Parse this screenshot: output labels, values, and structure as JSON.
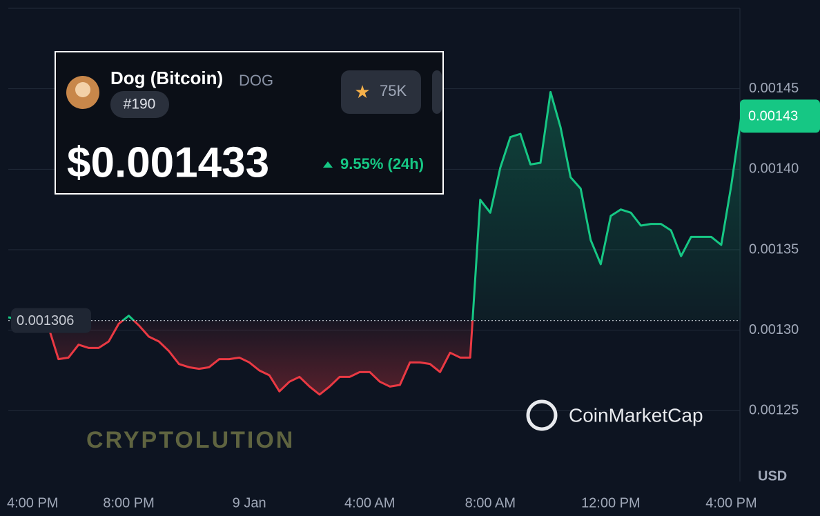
{
  "header": {
    "name": "Dog (Bitcoin)",
    "symbol": "DOG",
    "rank": "#190",
    "watchlist": "75K",
    "price": "$0.001433",
    "change": "9.55% (24h)"
  },
  "chart_data": {
    "type": "line",
    "categories": [
      "4:00 PM",
      null,
      null,
      null,
      null,
      null,
      null,
      null,
      null,
      null,
      null,
      null,
      "8:00 PM",
      null,
      null,
      null,
      null,
      null,
      null,
      null,
      null,
      null,
      null,
      null,
      "9 Jan",
      null,
      null,
      null,
      null,
      null,
      null,
      null,
      null,
      null,
      null,
      null,
      "4:00 AM",
      null,
      null,
      null,
      null,
      null,
      null,
      null,
      null,
      null,
      null,
      null,
      "8:00 AM",
      null,
      null,
      null,
      null,
      null,
      null,
      null,
      null,
      null,
      null,
      null,
      "12:00 PM",
      null,
      null,
      null,
      null,
      null,
      null,
      null,
      null,
      null,
      null,
      null,
      "4:00 PM",
      null
    ],
    "values": [
      0.001308,
      0.001307,
      0.001307,
      0.001307,
      0.001302,
      0.001282,
      0.001283,
      0.001291,
      0.001289,
      0.001289,
      0.001293,
      0.001304,
      0.001309,
      0.001303,
      0.001296,
      0.001293,
      0.001287,
      0.001279,
      0.001277,
      0.001276,
      0.001277,
      0.001282,
      0.001282,
      0.001283,
      0.00128,
      0.001275,
      0.001272,
      0.001262,
      0.001268,
      0.001271,
      0.001265,
      0.00126,
      0.001265,
      0.001271,
      0.001271,
      0.001274,
      0.001274,
      0.001268,
      0.001265,
      0.001266,
      0.00128,
      0.00128,
      0.001279,
      0.001274,
      0.001286,
      0.001283,
      0.001283,
      0.001381,
      0.001373,
      0.001401,
      0.00142,
      0.001422,
      0.001403,
      0.001404,
      0.001448,
      0.001426,
      0.001395,
      0.001388,
      0.001356,
      0.001341,
      0.001371,
      0.001375,
      0.001373,
      0.001365,
      0.001366,
      0.001366,
      0.001362,
      0.001346,
      0.001358,
      0.001358,
      0.001358,
      0.001353,
      0.00139,
      0.001433
    ],
    "reference": 0.001306,
    "last_price": {
      "value": 0.001433,
      "label": "0.00143"
    },
    "up_color": "#16c784",
    "down_color": "#ea3943",
    "ylim": [
      0.001206,
      0.0015
    ],
    "yticks": [
      0.00125,
      {
        "value": 0.0013,
        "label": "0.00130"
      },
      0.00135,
      {
        "value": 0.0014,
        "label": "0.00140"
      },
      0.00145
    ],
    "grid": true,
    "currency": "USD"
  },
  "branding": {
    "logo": "CoinMarketCap",
    "watermark": "CRYPTOLUTION"
  }
}
